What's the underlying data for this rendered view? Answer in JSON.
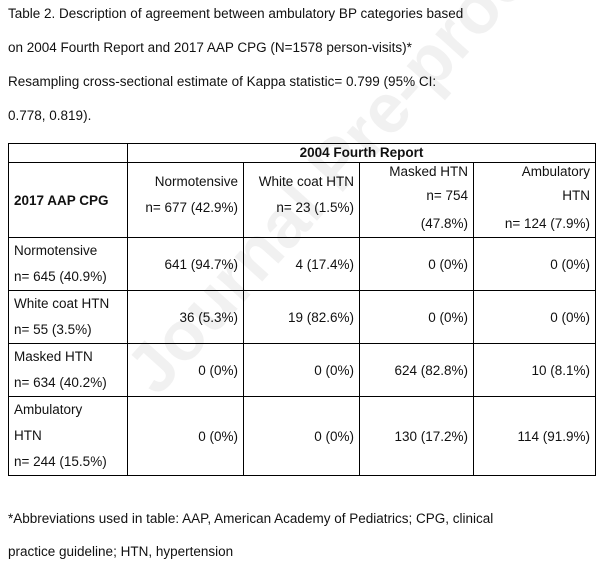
{
  "caption": {
    "line1": "Table 2. Description of agreement between ambulatory BP categories based",
    "line2": "on 2004 Fourth Report and 2017 AAP CPG (N=1578 person-visits)*",
    "line3": "Resampling cross-sectional estimate of Kappa statistic= 0.799 (95% CI:",
    "line4": "0.778, 0.819)."
  },
  "table": {
    "group_header": "2004 Fourth Report",
    "row_header": "2017 AAP CPG",
    "columns": [
      {
        "lines": [
          "Normotensive",
          "n= 677 (42.9%)"
        ]
      },
      {
        "lines": [
          "White coat HTN",
          "n= 23 (1.5%)"
        ]
      },
      {
        "lines": [
          "Masked HTN",
          "n= 754",
          "(47.8%)"
        ]
      },
      {
        "lines": [
          "Ambulatory",
          "HTN",
          "n= 124 (7.9%)"
        ]
      }
    ],
    "rows": [
      {
        "label": [
          "Normotensive",
          "n= 645 (40.9%)"
        ],
        "cells": [
          "641 (94.7%)",
          "4 (17.4%)",
          "0 (0%)",
          "0 (0%)"
        ]
      },
      {
        "label": [
          "White coat HTN",
          "n= 55 (3.5%)"
        ],
        "cells": [
          "36 (5.3%)",
          "19 (82.6%)",
          "0 (0%)",
          "0 (0%)"
        ]
      },
      {
        "label": [
          "Masked HTN",
          "n= 634 (40.2%)"
        ],
        "cells": [
          "0 (0%)",
          "0 (0%)",
          "624 (82.8%)",
          "10 (8.1%)"
        ]
      },
      {
        "label": [
          "Ambulatory",
          "HTN",
          "n= 244 (15.5%)"
        ],
        "cells": [
          "0 (0%)",
          "0 (0%)",
          "130 (17.2%)",
          "114 (91.9%)"
        ]
      }
    ]
  },
  "footnote": {
    "line1": "*Abbreviations used in table: AAP, American Academy of Pediatrics; CPG, clinical",
    "line2": "practice guideline; HTN, hypertension"
  },
  "watermark": "Journal Pre-proof"
}
